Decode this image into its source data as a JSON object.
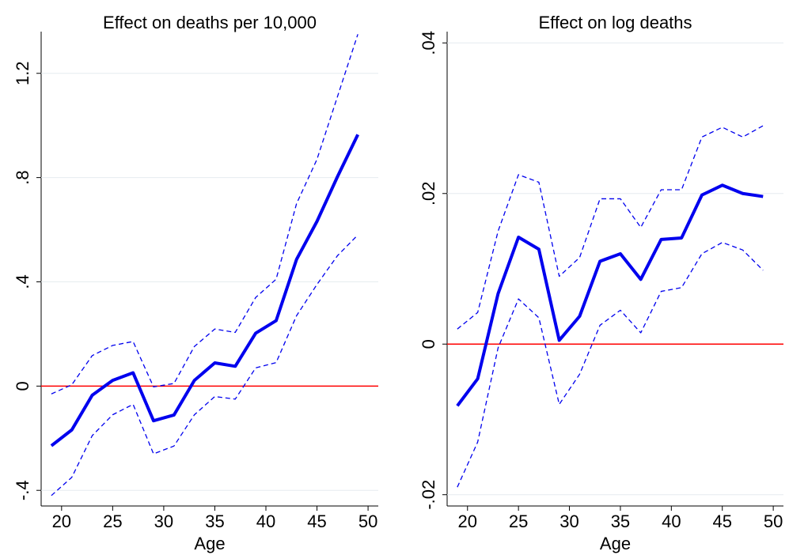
{
  "chart_data": [
    {
      "type": "line",
      "title": "Effect on deaths per 10,000",
      "x_label": "Age",
      "x": [
        19,
        21,
        23,
        25,
        27,
        29,
        31,
        33,
        35,
        37,
        39,
        41,
        43,
        45,
        47,
        49
      ],
      "series": [
        {
          "color": "#0000ee",
          "dashed": false,
          "values": [
            -0.229,
            -0.168,
            -0.035,
            0.022,
            0.051,
            -0.133,
            -0.111,
            0.022,
            0.089,
            0.076,
            0.203,
            0.251,
            0.486,
            0.632,
            0.803,
            0.965
          ]
        },
        {
          "color": "#0000ee",
          "dashed": true,
          "values": [
            -0.03,
            0.005,
            0.117,
            0.156,
            0.171,
            -0.003,
            0.01,
            0.152,
            0.219,
            0.206,
            0.34,
            0.41,
            0.7,
            0.87,
            1.11,
            1.35
          ]
        },
        {
          "color": "#0000ee",
          "dashed": true,
          "values": [
            -0.42,
            -0.35,
            -0.19,
            -0.11,
            -0.07,
            -0.26,
            -0.23,
            -0.11,
            -0.04,
            -0.05,
            0.07,
            0.09,
            0.27,
            0.39,
            0.5,
            0.58
          ]
        }
      ],
      "xlim": [
        18,
        51
      ],
      "xticks": [
        20,
        25,
        30,
        35,
        40,
        45,
        50
      ],
      "ylim": [
        -0.46,
        1.36
      ],
      "yticks": [
        {
          "value": -0.4,
          "label": "-.4"
        },
        0,
        {
          "value": 0.4,
          "label": ".4"
        },
        {
          "value": 0.8,
          "label": ".8"
        },
        1.2
      ],
      "grid": true,
      "reference_line": 0,
      "reference_color": "#ff0000"
    },
    {
      "type": "line",
      "title": "Effect on log deaths",
      "x_label": "Age",
      "x": [
        19,
        21,
        23,
        25,
        27,
        29,
        31,
        33,
        35,
        37,
        39,
        41,
        43,
        45,
        47,
        49
      ],
      "series": [
        {
          "color": "#0000ee",
          "dashed": false,
          "values": [
            -0.0082,
            -0.0046,
            0.0067,
            0.0142,
            0.0126,
            0.0005,
            0.0037,
            0.011,
            0.012,
            0.0086,
            0.0139,
            0.0141,
            0.0198,
            0.0211,
            0.02,
            0.0196
          ]
        },
        {
          "color": "#0000ee",
          "dashed": true,
          "values": [
            0.002,
            0.0042,
            0.015,
            0.0225,
            0.0215,
            0.009,
            0.0115,
            0.0193,
            0.0193,
            0.0155,
            0.0205,
            0.0205,
            0.0275,
            0.0288,
            0.0275,
            0.029
          ]
        },
        {
          "color": "#0000ee",
          "dashed": true,
          "values": [
            -0.019,
            -0.013,
            -0.0005,
            0.006,
            0.0035,
            -0.008,
            -0.004,
            0.0025,
            0.0045,
            0.0015,
            0.007,
            0.0075,
            0.012,
            0.0135,
            0.0125,
            0.0098
          ]
        }
      ],
      "xlim": [
        18,
        51
      ],
      "xticks": [
        20,
        25,
        30,
        35,
        40,
        45,
        50
      ],
      "ylim": [
        -0.0215,
        0.0415
      ],
      "yticks": [
        {
          "value": -0.02,
          "label": "-.02"
        },
        0,
        {
          "value": 0.02,
          "label": ".02"
        },
        {
          "value": 0.04,
          "label": ".04"
        }
      ],
      "grid": true,
      "reference_line": 0,
      "reference_color": "#ff0000"
    }
  ]
}
